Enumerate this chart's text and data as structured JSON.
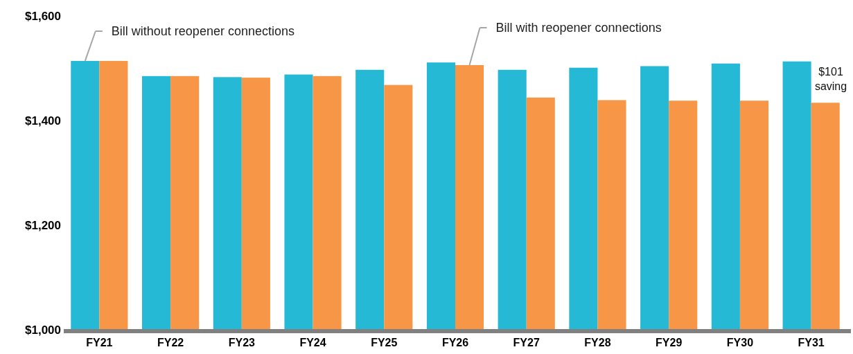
{
  "chart_data": {
    "type": "bar",
    "categories": [
      "FY21",
      "FY22",
      "FY23",
      "FY24",
      "FY25",
      "FY26",
      "FY27",
      "FY28",
      "FY29",
      "FY30",
      "FY31"
    ],
    "series": [
      {
        "name": "Bill without reopener connections",
        "color": "#26b9d6",
        "values": [
          1514,
          1485,
          1483,
          1488,
          1497,
          1511,
          1497,
          1501,
          1504,
          1509,
          1513
        ]
      },
      {
        "name": "Bill with reopener connections",
        "color": "#f79646",
        "values": [
          1514,
          1485,
          1482,
          1485,
          1468,
          1506,
          1444,
          1439,
          1438,
          1438,
          1434
        ]
      }
    ],
    "ylim": [
      1000,
      1600
    ],
    "yticks": [
      {
        "value": 1000,
        "label": "$1,000"
      },
      {
        "value": 1200,
        "label": "$1,200"
      },
      {
        "value": 1400,
        "label": "$1,400"
      },
      {
        "value": 1600,
        "label": "$1,600"
      }
    ],
    "grid": false,
    "legend": false,
    "annotations": [
      {
        "text": "$101 saving",
        "x": "FY31",
        "y": 1480
      }
    ]
  }
}
